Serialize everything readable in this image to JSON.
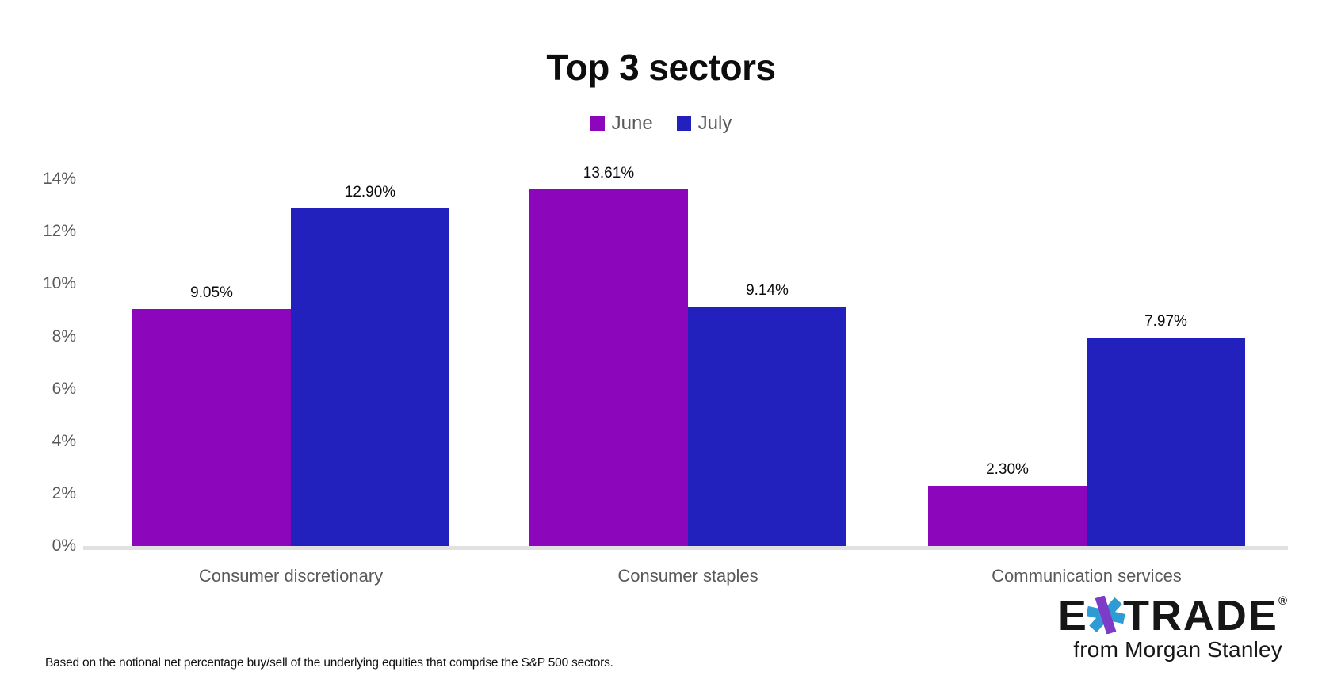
{
  "title": "Top 3 sectors",
  "chart_data": {
    "type": "bar",
    "title": "Top 3 sectors",
    "categories": [
      "Consumer discretionary",
      "Consumer staples",
      "Communication services"
    ],
    "series": [
      {
        "name": "June",
        "color": "#8C06BC",
        "values": [
          9.05,
          13.61,
          2.3
        ],
        "labels": [
          "9.05%",
          "13.61%",
          "2.30%"
        ]
      },
      {
        "name": "July",
        "color": "#2321BE",
        "values": [
          12.9,
          9.14,
          7.97
        ],
        "labels": [
          "12.90%",
          "9.14%",
          "7.97%"
        ]
      }
    ],
    "xlabel": "",
    "ylabel": "",
    "ylim": [
      0,
      14
    ],
    "ytick_step": 2,
    "ytick_labels": [
      "0%",
      "2%",
      "4%",
      "6%",
      "8%",
      "10%",
      "12%",
      "14%"
    ],
    "grid": false,
    "legend_position": "top-center"
  },
  "footnote": "Based on the notional net percentage buy/sell of the underlying equities that comprise the S&P 500 sectors.",
  "logo": {
    "e": "E",
    "trade": "TRADE",
    "registered": "®",
    "tagline": "from Morgan Stanley"
  },
  "colors": {
    "june": "#8C06BC",
    "july": "#2321BE",
    "axis_text": "#595959",
    "axis_line": "#e1e1e1",
    "value_text": "#0b0b0b",
    "star_purple": "#7D3BC8",
    "star_cyan": "#2E9BD4"
  }
}
